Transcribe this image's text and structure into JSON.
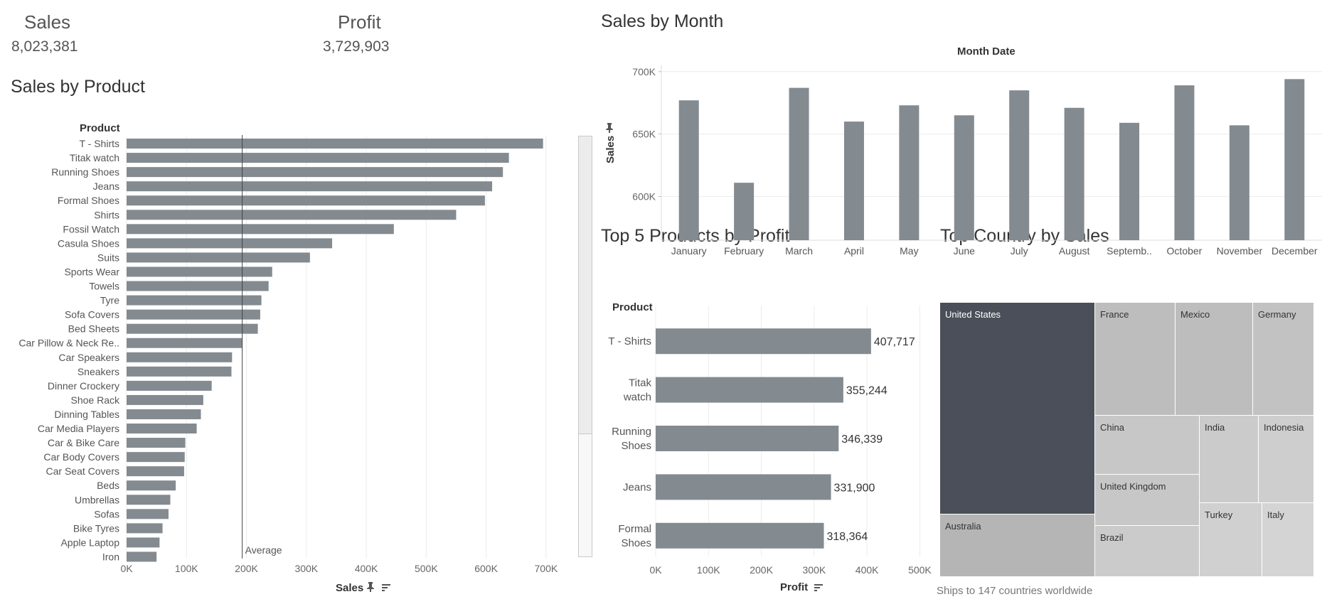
{
  "kpis": {
    "sales_label": "Sales",
    "sales_value": "8,023,381",
    "profit_label": "Profit",
    "profit_value": "3,729,903"
  },
  "sales_by_product": {
    "title": "Sales by Product",
    "column_header": "Product",
    "x_axis_title": "Sales",
    "average_label": "Average",
    "average_value": 193000
  },
  "sales_by_month": {
    "title": "Sales by Month",
    "header": "Month Date",
    "y_axis_title": "Sales"
  },
  "top5": {
    "title": "Top 5 Products by Profit",
    "column_header": "Product",
    "x_axis_title": "Profit"
  },
  "country": {
    "title": "Top Country by Sales",
    "footer": "Ships to 147 countries worldwide"
  },
  "colors": {
    "bar": "#838a90",
    "treemap_dark": "#4a4f59",
    "treemap_mid": "#b5b5b5",
    "treemap_light": "#c7c7c7",
    "treemap_lighter": "#d0d0d0",
    "gridline": "#ececec"
  },
  "icons": {
    "pin": "pin-icon",
    "sort": "sort-icon"
  },
  "chart_data": [
    {
      "type": "bar",
      "orientation": "horizontal",
      "title": "Sales by Product",
      "xlabel": "Sales",
      "ylabel": "Product",
      "xlim": [
        0,
        750000
      ],
      "x_ticks": [
        "0K",
        "100K",
        "200K",
        "300K",
        "400K",
        "500K",
        "600K",
        "700K"
      ],
      "grid": true,
      "categories": [
        "T - Shirts",
        "Titak watch",
        "Running Shoes",
        "Jeans",
        "Formal Shoes",
        "Shirts",
        "Fossil Watch",
        "Casula Shoes",
        "Suits",
        "Sports Wear",
        "Towels",
        "Tyre",
        "Sofa Covers",
        "Bed Sheets",
        "Car Pillow & Neck Re..",
        "Car Speakers",
        "Sneakers",
        "Dinner Crockery",
        "Shoe Rack",
        "Dinning Tables",
        "Car Media Players",
        "Car & Bike Care",
        "Car Body Covers",
        "Car Seat Covers",
        "Beds",
        "Umbrellas",
        "Sofas",
        "Bike Tyres",
        "Apple Laptop",
        "Iron"
      ],
      "values": [
        695000,
        638000,
        628000,
        610000,
        598000,
        550000,
        446000,
        343000,
        306000,
        243000,
        237000,
        225000,
        223000,
        219000,
        193000,
        176000,
        175000,
        142000,
        128000,
        124000,
        117000,
        98000,
        97000,
        96000,
        82000,
        73000,
        70000,
        60000,
        55000,
        50000
      ],
      "reference_line": {
        "label": "Average",
        "value": 193000
      }
    },
    {
      "type": "bar",
      "title": "Sales by Month",
      "xlabel": "Month Date",
      "ylabel": "Sales",
      "ylim": [
        565000,
        705000
      ],
      "y_ticks": [
        "600K",
        "650K",
        "700K"
      ],
      "grid": true,
      "categories": [
        "January",
        "February",
        "March",
        "April",
        "May",
        "June",
        "July",
        "August",
        "Septemb..",
        "October",
        "November",
        "December"
      ],
      "values": [
        677000,
        611000,
        687000,
        660000,
        673000,
        665000,
        685000,
        671000,
        659000,
        689000,
        657000,
        694000
      ]
    },
    {
      "type": "bar",
      "orientation": "horizontal",
      "title": "Top 5 Products by Profit",
      "xlabel": "Profit",
      "ylabel": "Product",
      "xlim": [
        0,
        525000
      ],
      "x_ticks": [
        "0K",
        "100K",
        "200K",
        "300K",
        "400K",
        "500K"
      ],
      "grid": true,
      "categories": [
        "T - Shirts",
        "Titak watch",
        "Running Shoes",
        "Jeans",
        "Formal Shoes"
      ],
      "values": [
        407717,
        355244,
        346339,
        331900,
        318364
      ],
      "data_labels": [
        "407,717",
        "355,244",
        "346,339",
        "331,900",
        "318,364"
      ]
    },
    {
      "type": "treemap",
      "title": "Top Country by Sales",
      "categories": [
        "United States",
        "Australia",
        "France",
        "Mexico",
        "Germany",
        "China",
        "United Kingdom",
        "Brazil",
        "India",
        "Indonesia",
        "Turkey",
        "Italy"
      ]
    }
  ]
}
